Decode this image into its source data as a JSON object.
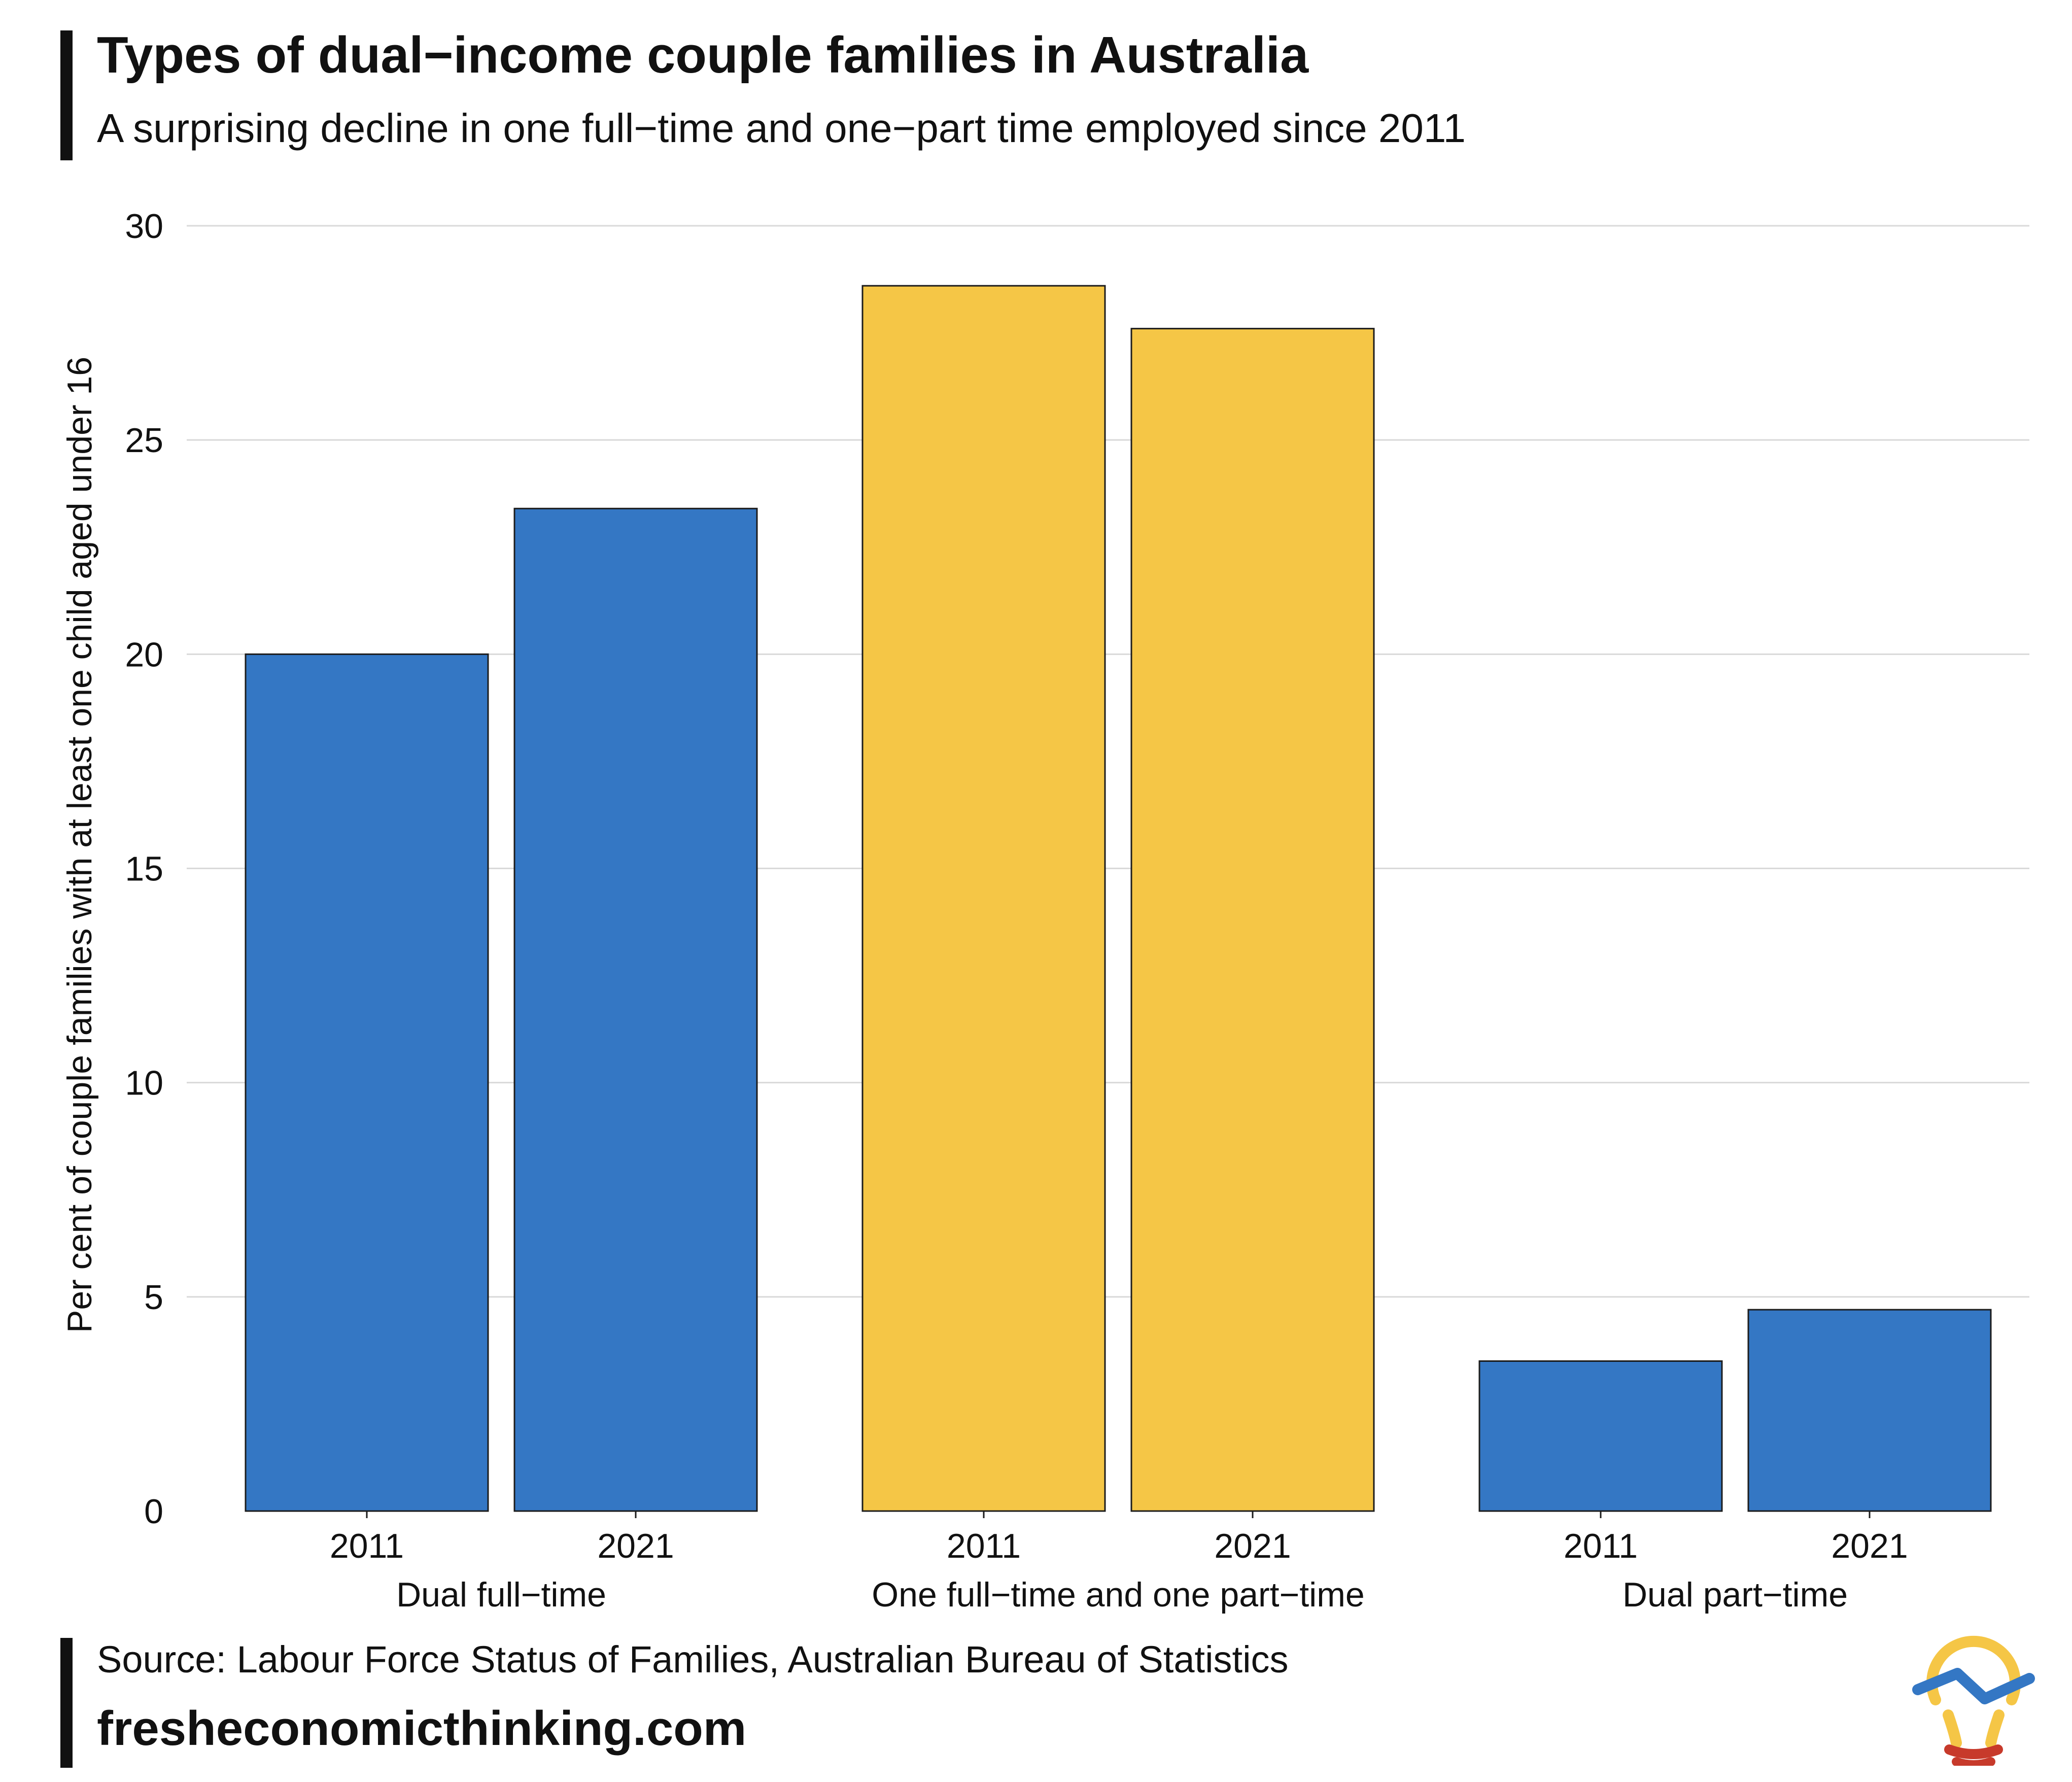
{
  "header": {
    "title": "Types of dual−income couple families in Australia",
    "subtitle": "A surprising decline in one full−time and one−part time employed since 2011"
  },
  "footer": {
    "source": "Source: Labour Force Status of Families, Australian Bureau of Statistics",
    "website": "fresheconomicthinking.com",
    "logo_icon": "lightbulb-chart-icon"
  },
  "colors": {
    "blue": "#3477c4",
    "yellow": "#f5c646",
    "accent": "#111111"
  },
  "chart_data": {
    "type": "bar",
    "title": "Types of dual−income couple families in Australia",
    "subtitle": "A surprising decline in one full−time and one−part time employed since 2011",
    "ylabel": "Per cent of couple families with at least one child aged under 16",
    "xlabel": "",
    "ylim": [
      0,
      30
    ],
    "yticks": [
      0,
      5,
      10,
      15,
      20,
      25,
      30
    ],
    "grid": true,
    "groups": [
      {
        "name": "Dual full−time",
        "color": "#3477c4",
        "bars": [
          {
            "year": "2011",
            "value": 20.0
          },
          {
            "year": "2021",
            "value": 23.4
          }
        ]
      },
      {
        "name": "One full−time and one part−time",
        "color": "#f5c646",
        "bars": [
          {
            "year": "2011",
            "value": 28.6
          },
          {
            "year": "2021",
            "value": 27.6
          }
        ]
      },
      {
        "name": "Dual part−time",
        "color": "#3477c4",
        "bars": [
          {
            "year": "2011",
            "value": 3.5
          },
          {
            "year": "2021",
            "value": 4.7
          }
        ]
      }
    ]
  }
}
